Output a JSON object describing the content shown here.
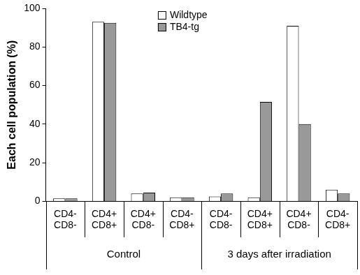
{
  "chart_data": {
    "type": "bar",
    "y_label": "Each cell population (%)",
    "categories": [
      [
        "CD4-",
        "CD8-"
      ],
      [
        "CD4+",
        "CD8+"
      ],
      [
        "CD4+",
        "CD8-"
      ],
      [
        "CD4-",
        "CD8+"
      ],
      [
        "CD4-",
        "CD8-"
      ],
      [
        "CD4+",
        "CD8+"
      ],
      [
        "CD4+",
        "CD8-"
      ],
      [
        "CD4-",
        "CD8+"
      ]
    ],
    "x_groups": [
      "Control",
      "3 days after irradiation"
    ],
    "series": [
      {
        "name": "Wildtype",
        "color": "#ffffff",
        "values": [
          1.5,
          93,
          4,
          2,
          2.5,
          2,
          91,
          6
        ]
      },
      {
        "name": "TB4-tg",
        "color": "#999999",
        "values": [
          1.5,
          92.5,
          4.5,
          2,
          4,
          51.5,
          40,
          4
        ]
      }
    ],
    "ylim": [
      0,
      100
    ],
    "yticks": [
      0,
      20,
      40,
      60,
      80,
      100
    ],
    "grid": false,
    "legend": "top"
  }
}
